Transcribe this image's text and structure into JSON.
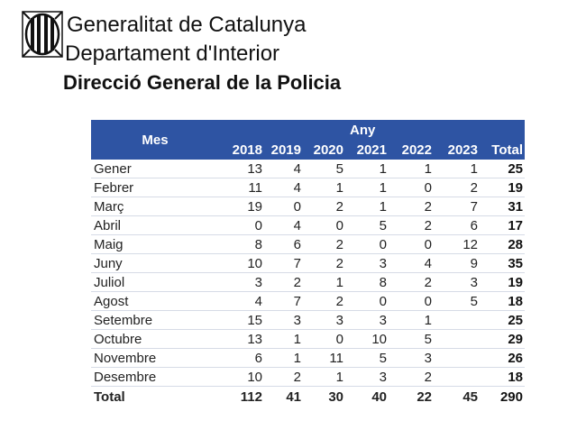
{
  "header": {
    "line1": "Generalitat de Catalunya",
    "line2": "Departament d'Interior",
    "line3": "Direcció General de la Policia"
  },
  "table": {
    "month_header": "Mes",
    "group_header": "Any",
    "columns": [
      "2018",
      "2019",
      "2020",
      "2021",
      "2022",
      "2023",
      "Total"
    ],
    "rows": [
      {
        "m": "Gener",
        "v": [
          "13",
          "4",
          "5",
          "1",
          "1",
          "1",
          "25"
        ]
      },
      {
        "m": "Febrer",
        "v": [
          "11",
          "4",
          "1",
          "1",
          "0",
          "2",
          "19"
        ]
      },
      {
        "m": "Març",
        "v": [
          "19",
          "0",
          "2",
          "1",
          "2",
          "7",
          "31"
        ]
      },
      {
        "m": "Abril",
        "v": [
          "0",
          "4",
          "0",
          "5",
          "2",
          "6",
          "17"
        ]
      },
      {
        "m": "Maig",
        "v": [
          "8",
          "6",
          "2",
          "0",
          "0",
          "12",
          "28"
        ]
      },
      {
        "m": "Juny",
        "v": [
          "10",
          "7",
          "2",
          "3",
          "4",
          "9",
          "35"
        ]
      },
      {
        "m": "Juliol",
        "v": [
          "3",
          "2",
          "1",
          "8",
          "2",
          "3",
          "19"
        ]
      },
      {
        "m": "Agost",
        "v": [
          "4",
          "7",
          "2",
          "0",
          "0",
          "5",
          "18"
        ]
      },
      {
        "m": "Setembre",
        "v": [
          "15",
          "3",
          "3",
          "3",
          "1",
          "",
          "25"
        ]
      },
      {
        "m": "Octubre",
        "v": [
          "13",
          "1",
          "0",
          "10",
          "5",
          "",
          "29"
        ]
      },
      {
        "m": "Novembre",
        "v": [
          "6",
          "1",
          "11",
          "5",
          "3",
          "",
          "26"
        ]
      },
      {
        "m": "Desembre",
        "v": [
          "10",
          "2",
          "1",
          "3",
          "2",
          "",
          "18"
        ]
      }
    ],
    "total": {
      "m": "Total",
      "v": [
        "112",
        "41",
        "30",
        "40",
        "22",
        "45",
        "290"
      ]
    }
  },
  "colors": {
    "header_bg": "#2e54a3",
    "row_rule": "#d6dbe6"
  }
}
